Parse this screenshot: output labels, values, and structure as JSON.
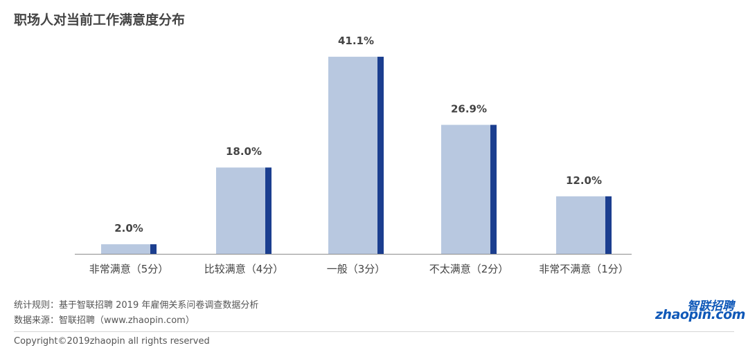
{
  "title": "职场人对当前工作满意度分布",
  "chart_data": {
    "type": "bar",
    "categories": [
      "非常满意（5分）",
      "比较满意（4分）",
      "一般（3分）",
      "不太满意（2分）",
      "非常不满意（1分）"
    ],
    "values": [
      2.0,
      18.0,
      41.1,
      26.9,
      12.0
    ],
    "value_labels": [
      "2.0%",
      "18.0%",
      "41.1%",
      "26.9%",
      "12.0%"
    ],
    "ylim": [
      0,
      45
    ],
    "grid": false,
    "colors": {
      "bar_fill": "#b8c8e0",
      "bar_edge": "#1b3e8f",
      "axis": "#8c8c8c"
    }
  },
  "notes": {
    "rule": "统计规则：基于智联招聘 2019 年雇佣关系问卷调查数据分析",
    "source": "数据来源：智联招聘（www.zhaopin.com）"
  },
  "copyright": "Copyright©2019zhaopin all rights reserved",
  "logo": {
    "cn": "智联招聘",
    "en": "zhaopin.com"
  }
}
